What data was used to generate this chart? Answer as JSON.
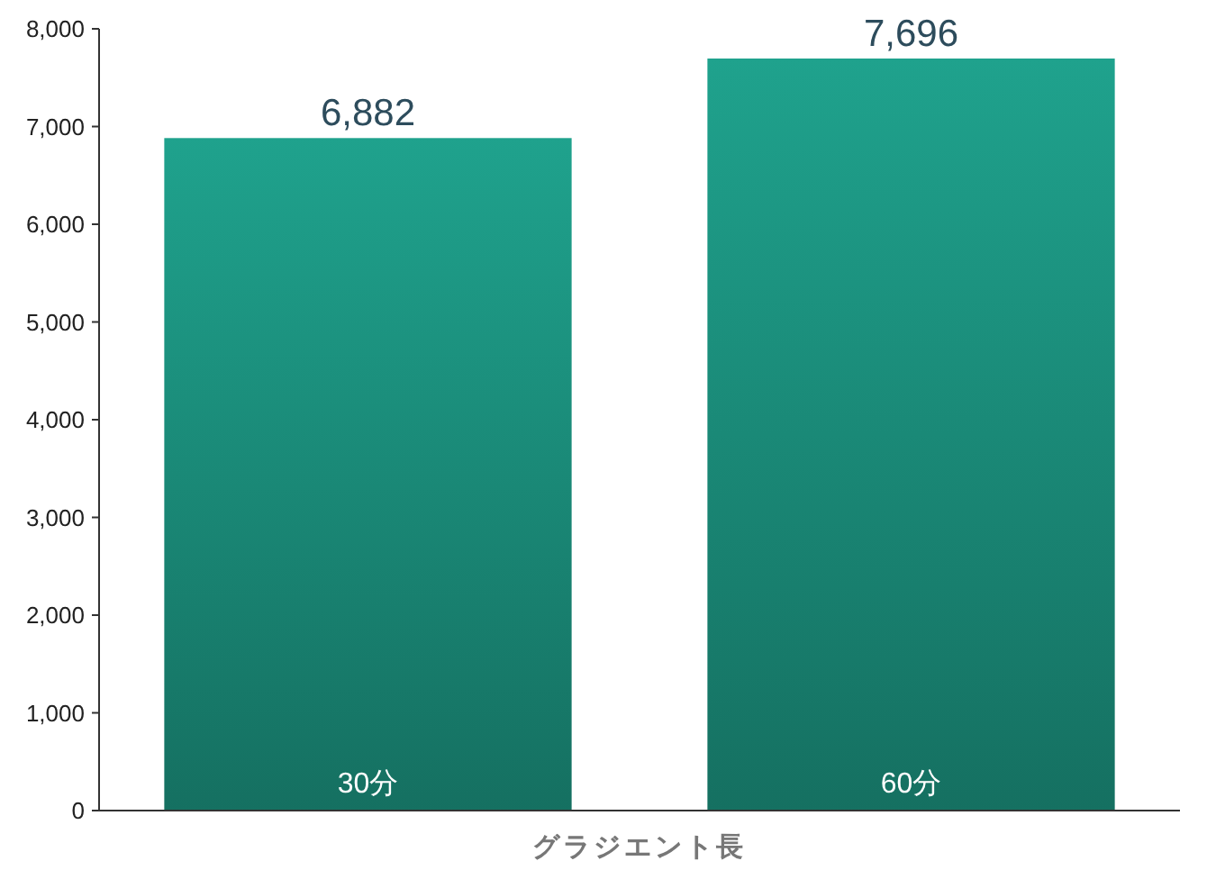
{
  "chart_data": {
    "type": "bar",
    "xlabel": "グラジエント長",
    "categories": [
      "30分",
      "60分"
    ],
    "values": [
      6882,
      7696
    ],
    "value_labels": [
      "6,882",
      "7,696"
    ],
    "color": "#1d9a86",
    "ylim": [
      0,
      8000
    ],
    "yticks": [
      {
        "value": 0,
        "label": "0"
      },
      {
        "value": 1000,
        "label": "1,000"
      },
      {
        "value": 2000,
        "label": "2,000"
      },
      {
        "value": 3000,
        "label": "3,000"
      },
      {
        "value": 4000,
        "label": "4,000"
      },
      {
        "value": 5000,
        "label": "5,000"
      },
      {
        "value": 6000,
        "label": "6,000"
      },
      {
        "value": 7000,
        "label": "7,000"
      },
      {
        "value": 8000,
        "label": "8,000"
      }
    ],
    "grid": false
  }
}
